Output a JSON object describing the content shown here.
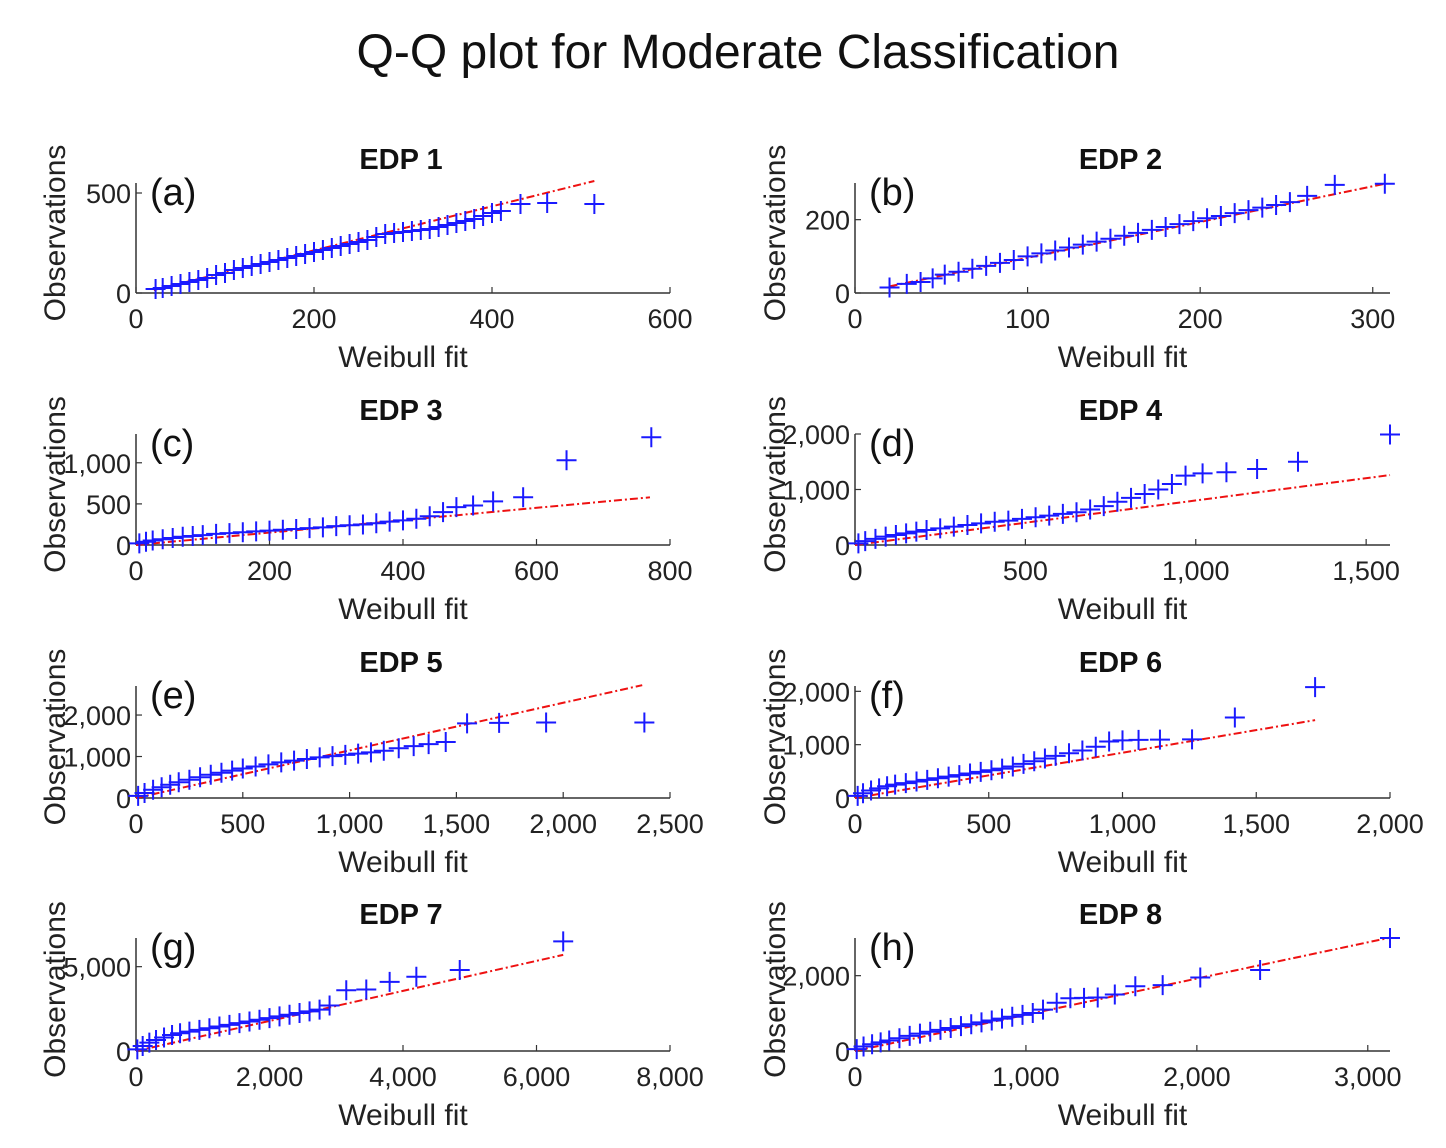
{
  "figure": {
    "title": "Q-Q plot for Moderate Classification"
  },
  "chart_data": [
    {
      "type": "scatter",
      "panel": "(a)",
      "title": "EDP 1",
      "xlabel": "Weibull fit",
      "ylabel": "Observations",
      "xlim": [
        0,
        600
      ],
      "ylim": [
        0,
        550
      ],
      "xticks": [
        0,
        200,
        400,
        600
      ],
      "xtick_labels": [
        "0",
        "200",
        "400",
        "600"
      ],
      "yticks": [
        0,
        500
      ],
      "ytick_labels": [
        "0",
        "500"
      ],
      "reference_line": {
        "x": [
          20,
          515
        ],
        "y": [
          15,
          560
        ]
      },
      "points": {
        "x": [
          22,
          30,
          40,
          50,
          60,
          70,
          80,
          90,
          100,
          110,
          120,
          130,
          140,
          150,
          160,
          170,
          180,
          190,
          200,
          210,
          220,
          230,
          240,
          250,
          260,
          270,
          280,
          290,
          300,
          310,
          320,
          330,
          340,
          350,
          360,
          370,
          380,
          390,
          400,
          410,
          432,
          462,
          515
        ],
        "y": [
          20,
          25,
          35,
          45,
          55,
          65,
          75,
          90,
          100,
          115,
          125,
          135,
          145,
          155,
          165,
          175,
          185,
          195,
          205,
          215,
          225,
          235,
          245,
          255,
          265,
          280,
          295,
          300,
          305,
          310,
          315,
          320,
          330,
          340,
          350,
          360,
          370,
          385,
          400,
          410,
          445,
          450,
          445
        ]
      }
    },
    {
      "type": "scatter",
      "panel": "(b)",
      "title": "EDP 2",
      "xlabel": "Weibull fit",
      "ylabel": "Observations",
      "xlim": [
        0,
        310
      ],
      "ylim": [
        0,
        300
      ],
      "xticks": [
        0,
        100,
        200,
        300
      ],
      "xtick_labels": [
        "0",
        "100",
        "200",
        "300"
      ],
      "yticks": [
        0,
        200
      ],
      "ytick_labels": [
        "0",
        "200"
      ],
      "reference_line": {
        "x": [
          20,
          307
        ],
        "y": [
          18,
          298
        ]
      },
      "points": {
        "x": [
          20,
          30,
          38,
          45,
          52,
          60,
          68,
          76,
          84,
          92,
          100,
          108,
          116,
          124,
          132,
          140,
          148,
          156,
          164,
          172,
          180,
          188,
          196,
          204,
          212,
          220,
          228,
          236,
          244,
          252,
          262,
          278,
          307
        ],
        "y": [
          15,
          25,
          30,
          40,
          50,
          58,
          66,
          74,
          82,
          90,
          100,
          108,
          116,
          124,
          132,
          140,
          148,
          156,
          164,
          172,
          180,
          188,
          196,
          204,
          210,
          218,
          226,
          233,
          240,
          248,
          265,
          295,
          298
        ]
      }
    },
    {
      "type": "scatter",
      "panel": "(c)",
      "title": "EDP 3",
      "xlabel": "Weibull fit",
      "ylabel": "Observations",
      "xlim": [
        0,
        800
      ],
      "ylim": [
        0,
        1350
      ],
      "xticks": [
        0,
        200,
        400,
        600,
        800
      ],
      "xtick_labels": [
        "0",
        "200",
        "400",
        "600",
        "800"
      ],
      "yticks": [
        0,
        500,
        1000
      ],
      "ytick_labels": [
        "0",
        "500",
        "1,000"
      ],
      "reference_line": {
        "x": [
          0,
          770
        ],
        "y": [
          0,
          580
        ]
      },
      "points": {
        "x": [
          5,
          15,
          25,
          40,
          55,
          70,
          85,
          100,
          120,
          140,
          160,
          180,
          200,
          220,
          240,
          260,
          280,
          300,
          320,
          340,
          360,
          380,
          400,
          420,
          440,
          460,
          480,
          505,
          535,
          580,
          645,
          772
        ],
        "y": [
          20,
          40,
          55,
          70,
          85,
          100,
          110,
          120,
          135,
          145,
          155,
          165,
          175,
          185,
          195,
          205,
          215,
          230,
          240,
          250,
          265,
          285,
          300,
          320,
          350,
          400,
          460,
          480,
          530,
          580,
          1030,
          1310
        ]
      }
    },
    {
      "type": "scatter",
      "panel": "(d)",
      "title": "EDP 4",
      "xlabel": "Weibull fit",
      "ylabel": "Observations",
      "xlim": [
        0,
        1570
      ],
      "ylim": [
        0,
        2000
      ],
      "xticks": [
        0,
        500,
        1000,
        1500
      ],
      "xtick_labels": [
        "0",
        "500",
        "1,000",
        "1,500"
      ],
      "yticks": [
        0,
        1000,
        2000
      ],
      "ytick_labels": [
        "0",
        "1,000",
        "2,000"
      ],
      "reference_line": {
        "x": [
          0,
          1570
        ],
        "y": [
          0,
          1260
        ]
      },
      "points": {
        "x": [
          10,
          30,
          60,
          90,
          120,
          150,
          180,
          210,
          250,
          290,
          330,
          370,
          410,
          450,
          490,
          530,
          570,
          610,
          650,
          690,
          730,
          770,
          810,
          850,
          890,
          930,
          970,
          1020,
          1090,
          1180,
          1300,
          1570
        ],
        "y": [
          30,
          70,
          110,
          150,
          180,
          210,
          240,
          270,
          300,
          330,
          360,
          390,
          420,
          440,
          470,
          500,
          530,
          560,
          590,
          640,
          700,
          780,
          850,
          920,
          1000,
          1100,
          1250,
          1290,
          1310,
          1370,
          1500,
          1990
        ]
      }
    },
    {
      "type": "scatter",
      "panel": "(e)",
      "title": "EDP 5",
      "xlabel": "Weibull fit",
      "ylabel": "Observations",
      "xlim": [
        0,
        2500
      ],
      "ylim": [
        0,
        2700
      ],
      "xticks": [
        0,
        500,
        1000,
        1500,
        2000,
        2500
      ],
      "xtick_labels": [
        "0",
        "500",
        "1,000",
        "1,500",
        "2,000",
        "2,500"
      ],
      "yticks": [
        0,
        1000,
        2000
      ],
      "ytick_labels": [
        "0",
        "1,000",
        "2,000"
      ],
      "reference_line": {
        "x": [
          0,
          2370
        ],
        "y": [
          0,
          2720
        ]
      },
      "points": {
        "x": [
          10,
          40,
          80,
          120,
          160,
          200,
          250,
          300,
          350,
          400,
          450,
          500,
          560,
          620,
          680,
          740,
          800,
          860,
          920,
          980,
          1040,
          1100,
          1160,
          1230,
          1300,
          1370,
          1450,
          1550,
          1700,
          1920,
          2380
        ],
        "y": [
          50,
          120,
          200,
          260,
          320,
          380,
          440,
          500,
          560,
          610,
          660,
          710,
          760,
          810,
          860,
          900,
          940,
          980,
          1010,
          1040,
          1070,
          1100,
          1140,
          1200,
          1250,
          1300,
          1350,
          1800,
          1810,
          1820,
          1820
        ]
      }
    },
    {
      "type": "scatter",
      "panel": "(f)",
      "title": "EDP 6",
      "xlabel": "Weibull fit",
      "ylabel": "Observations",
      "xlim": [
        0,
        2000
      ],
      "ylim": [
        0,
        2100
      ],
      "xticks": [
        0,
        500,
        1000,
        1500,
        2000
      ],
      "xtick_labels": [
        "0",
        "500",
        "1,000",
        "1,500",
        "2,000"
      ],
      "yticks": [
        0,
        1000,
        2000
      ],
      "ytick_labels": [
        "0",
        "1,000",
        "2,000"
      ],
      "reference_line": {
        "x": [
          0,
          1720
        ],
        "y": [
          0,
          1460
        ]
      },
      "points": {
        "x": [
          10,
          30,
          60,
          90,
          120,
          150,
          190,
          230,
          270,
          310,
          350,
          390,
          430,
          470,
          510,
          550,
          590,
          630,
          670,
          710,
          750,
          800,
          850,
          900,
          950,
          1000,
          1060,
          1140,
          1260,
          1420,
          1720
        ],
        "y": [
          40,
          90,
          140,
          180,
          220,
          250,
          280,
          310,
          340,
          370,
          400,
          430,
          460,
          490,
          520,
          550,
          590,
          640,
          690,
          740,
          790,
          840,
          890,
          960,
          1060,
          1080,
          1090,
          1095,
          1100,
          1510,
          2080
        ]
      }
    },
    {
      "type": "scatter",
      "panel": "(g)",
      "title": "EDP 7",
      "xlabel": "Weibull fit",
      "ylabel": "Observations",
      "xlim": [
        0,
        8000
      ],
      "ylim": [
        0,
        6700
      ],
      "xticks": [
        0,
        2000,
        4000,
        6000,
        8000
      ],
      "xtick_labels": [
        "0",
        "2,000",
        "4,000",
        "6,000",
        "8,000"
      ],
      "yticks": [
        0,
        5000
      ],
      "ytick_labels": [
        "0",
        "5,000"
      ],
      "reference_line": {
        "x": [
          0,
          6400
        ],
        "y": [
          0,
          5700
        ]
      },
      "points": {
        "x": [
          20,
          100,
          200,
          300,
          420,
          540,
          660,
          800,
          950,
          1100,
          1250,
          1400,
          1550,
          1700,
          1850,
          2000,
          2150,
          2300,
          2450,
          2600,
          2750,
          2900,
          3150,
          3450,
          3800,
          4200,
          4850,
          6400
        ],
        "y": [
          100,
          300,
          500,
          650,
          800,
          950,
          1050,
          1150,
          1250,
          1350,
          1450,
          1550,
          1650,
          1750,
          1850,
          1950,
          2050,
          2150,
          2250,
          2350,
          2450,
          2700,
          3600,
          3650,
          4100,
          4400,
          4800,
          6500
        ]
      }
    },
    {
      "type": "scatter",
      "panel": "(h)",
      "title": "EDP 8",
      "xlabel": "Weibull fit",
      "ylabel": "Observations",
      "xlim": [
        0,
        3130
      ],
      "ylim": [
        0,
        3000
      ],
      "xticks": [
        0,
        1000,
        2000,
        3000
      ],
      "xtick_labels": [
        "0",
        "1,000",
        "2,000",
        "3,000"
      ],
      "yticks": [
        0,
        2000
      ],
      "ytick_labels": [
        "0",
        "2,000"
      ],
      "reference_line": {
        "x": [
          0,
          3130
        ],
        "y": [
          0,
          3010
        ]
      },
      "points": {
        "x": [
          10,
          50,
          100,
          150,
          200,
          260,
          320,
          380,
          440,
          500,
          560,
          620,
          680,
          740,
          800,
          860,
          920,
          980,
          1040,
          1100,
          1180,
          1260,
          1340,
          1420,
          1520,
          1640,
          1800,
          2020,
          2370,
          3130
        ],
        "y": [
          50,
          120,
          180,
          230,
          280,
          340,
          400,
          460,
          510,
          560,
          610,
          660,
          710,
          760,
          810,
          860,
          910,
          960,
          1010,
          1100,
          1280,
          1400,
          1410,
          1420,
          1500,
          1720,
          1750,
          1950,
          2150,
          3000
        ]
      }
    }
  ]
}
